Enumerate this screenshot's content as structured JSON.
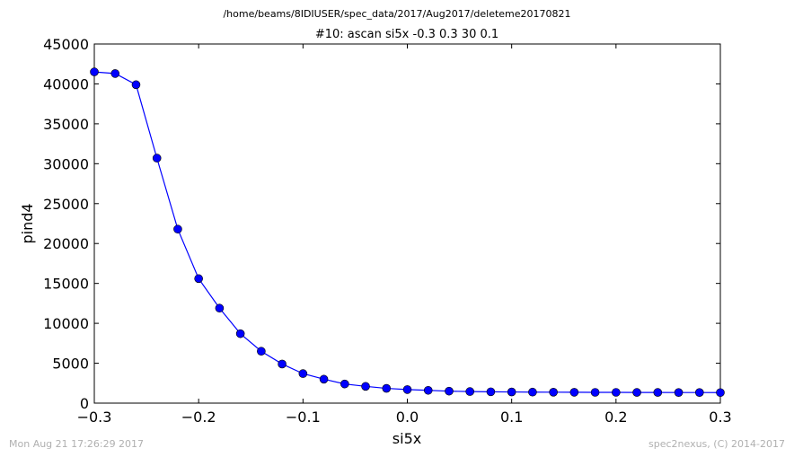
{
  "chart_data": {
    "type": "line",
    "suptitle": "/home/beams/8IDIUSER/spec_data/2017/Aug2017/deleteme20170821",
    "title": "#10: ascan  si5x -0.3 0.3  30 0.1",
    "xlabel": "si5x",
    "ylabel": "pind4",
    "xlim": [
      -0.3,
      0.3
    ],
    "ylim": [
      0,
      45000
    ],
    "xticks": [
      -0.3,
      -0.2,
      -0.1,
      0.0,
      0.1,
      0.2,
      0.3
    ],
    "xtick_labels": [
      "−0.3",
      "−0.2",
      "−0.1",
      "0.0",
      "0.1",
      "0.2",
      "0.3"
    ],
    "yticks": [
      0,
      5000,
      10000,
      15000,
      20000,
      25000,
      30000,
      35000,
      40000,
      45000
    ],
    "ytick_labels": [
      "0",
      "5000",
      "10000",
      "15000",
      "20000",
      "25000",
      "30000",
      "35000",
      "40000",
      "45000"
    ],
    "grid": false,
    "series": [
      {
        "color": "#0000ff",
        "x": [
          -0.3,
          -0.28,
          -0.26,
          -0.24,
          -0.22,
          -0.2,
          -0.18,
          -0.16,
          -0.14,
          -0.12,
          -0.1,
          -0.08,
          -0.06,
          -0.04,
          -0.02,
          0.0,
          0.02,
          0.04,
          0.06,
          0.08,
          0.1,
          0.12,
          0.14,
          0.16,
          0.18,
          0.2,
          0.22,
          0.24,
          0.26,
          0.28,
          0.3
        ],
        "y": [
          41500,
          41300,
          39900,
          30700,
          21800,
          15600,
          11900,
          8700,
          6500,
          4900,
          3700,
          3000,
          2400,
          2100,
          1850,
          1700,
          1600,
          1500,
          1450,
          1420,
          1400,
          1380,
          1370,
          1360,
          1350,
          1350,
          1340,
          1340,
          1330,
          1330,
          1320
        ]
      }
    ]
  },
  "footer": {
    "timestamp": "Mon Aug 21 17:26:29 2017",
    "credit": "spec2nexus, (C) 2014-2017"
  }
}
